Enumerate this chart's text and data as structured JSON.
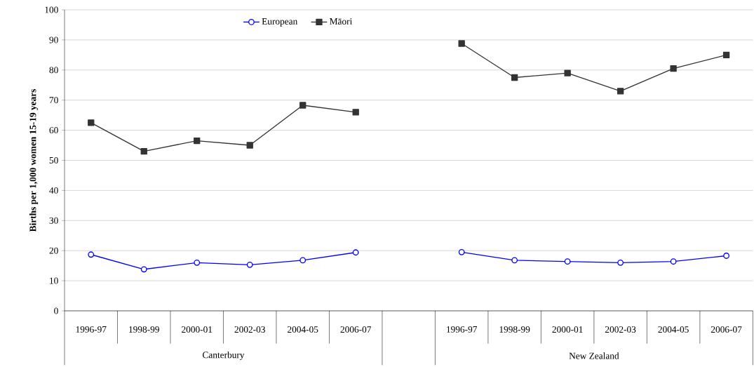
{
  "chart_data": {
    "type": "line",
    "ylabel": "Births per 1,000 women 15-19 years",
    "categories": [
      "1996-97",
      "1998-99",
      "2000-01",
      "2002-03",
      "2004-05",
      "2006-07",
      null,
      "1996-97",
      "1998-99",
      "2000-01",
      "2002-03",
      "2004-05",
      "2006-07"
    ],
    "series": [
      {
        "name": "European",
        "color": "#0000ff",
        "marker": "circle",
        "values": [
          18.7,
          13.8,
          16.0,
          15.3,
          16.8,
          19.4,
          null,
          19.5,
          16.8,
          16.4,
          16.0,
          16.4,
          18.3
        ]
      },
      {
        "name": "Māori",
        "color": "#333333",
        "marker": "square",
        "values": [
          62.5,
          53.0,
          56.5,
          55.0,
          68.3,
          66.0,
          null,
          88.8,
          77.5,
          79.0,
          73.0,
          80.5,
          85.0
        ]
      }
    ],
    "annotations": [
      "Canterbury",
      "New Zealand"
    ],
    "ylim": [
      0,
      100
    ],
    "yticks": [
      0,
      10,
      20,
      30,
      40,
      50,
      60,
      70,
      80,
      90,
      100
    ],
    "grid": "y",
    "legend": "top"
  }
}
